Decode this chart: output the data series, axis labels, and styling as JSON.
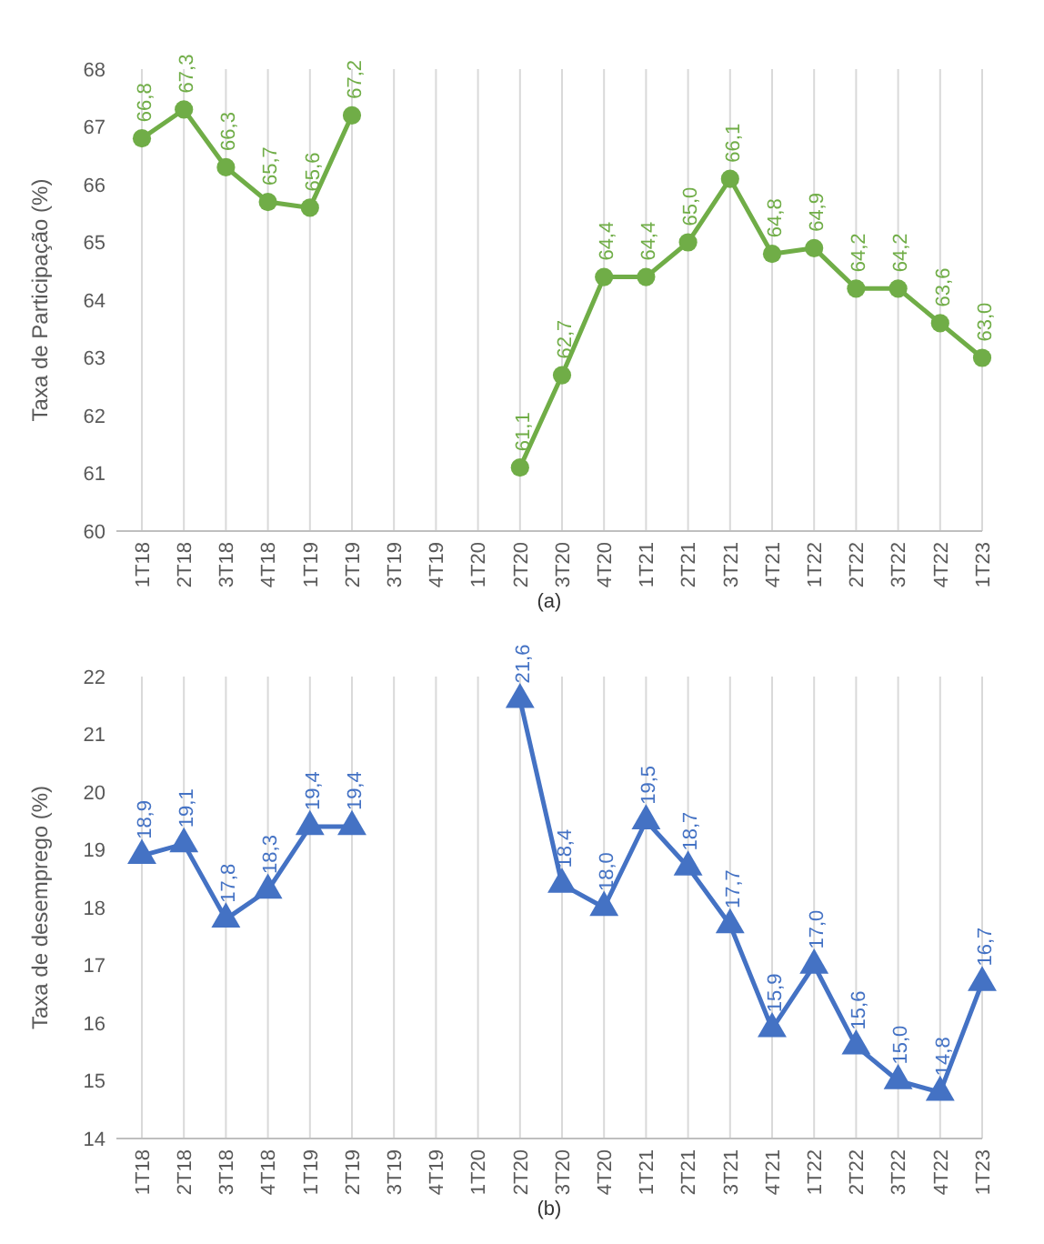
{
  "chart_data": [
    {
      "type": "line",
      "ylabel": "Taxa de Participação (%)",
      "categories": [
        "1T18",
        "2T18",
        "3T18",
        "4T18",
        "1T19",
        "2T19",
        "3T19",
        "4T19",
        "1T20",
        "2T20",
        "3T20",
        "4T20",
        "1T21",
        "2T21",
        "3T21",
        "4T21",
        "1T22",
        "2T22",
        "3T22",
        "4T22",
        "1T23"
      ],
      "series": [
        {
          "color": "#70ad47",
          "values": [
            66.8,
            67.3,
            66.3,
            65.7,
            65.6,
            67.2,
            null,
            null,
            null,
            61.1,
            62.7,
            64.4,
            64.4,
            65.0,
            66.1,
            64.8,
            64.9,
            64.2,
            64.2,
            63.6,
            63.0
          ],
          "value_labels": [
            "66,8",
            "67,3",
            "66,3",
            "65,7",
            "65,6",
            "67,2",
            null,
            null,
            null,
            "61,1",
            "62,7",
            "64,4",
            "64,4",
            "65,0",
            "66,1",
            "64,8",
            "64,9",
            "64,2",
            "64,2",
            "63,6",
            "63,0"
          ]
        }
      ],
      "ylim": [
        60,
        68
      ],
      "yticks": [
        60,
        61,
        62,
        63,
        64,
        65,
        66,
        67,
        68
      ],
      "grid": "x",
      "marker": "circle",
      "line_style": "solid",
      "annotations": [
        "(a)"
      ]
    },
    {
      "type": "line",
      "ylabel": "Taxa de desemprego (%)",
      "categories": [
        "1T18",
        "2T18",
        "3T18",
        "4T18",
        "1T19",
        "2T19",
        "3T19",
        "4T19",
        "1T20",
        "2T20",
        "3T20",
        "4T20",
        "1T21",
        "2T21",
        "3T21",
        "4T21",
        "1T22",
        "2T22",
        "3T22",
        "4T22",
        "1T23"
      ],
      "series": [
        {
          "color": "#4472c4",
          "values": [
            18.9,
            19.1,
            17.8,
            18.3,
            19.4,
            19.4,
            null,
            null,
            null,
            21.6,
            18.4,
            18.0,
            19.5,
            18.7,
            17.7,
            15.9,
            17.0,
            15.6,
            15.0,
            14.8,
            16.7
          ],
          "value_labels": [
            "18,9",
            "19,1",
            "17,8",
            "18,3",
            "19,4",
            "19,4",
            null,
            null,
            null,
            "21,6",
            "18,4",
            "18,0",
            "19,5",
            "18,7",
            "17,7",
            "15,9",
            "17,0",
            "15,6",
            "15,0",
            "14,8",
            "16,7"
          ]
        }
      ],
      "ylim": [
        14,
        22
      ],
      "yticks": [
        14,
        15,
        16,
        17,
        18,
        19,
        20,
        21,
        22
      ],
      "grid": "x",
      "marker": "triangle",
      "line_style": "solid",
      "annotations": [
        "(b)"
      ]
    }
  ]
}
